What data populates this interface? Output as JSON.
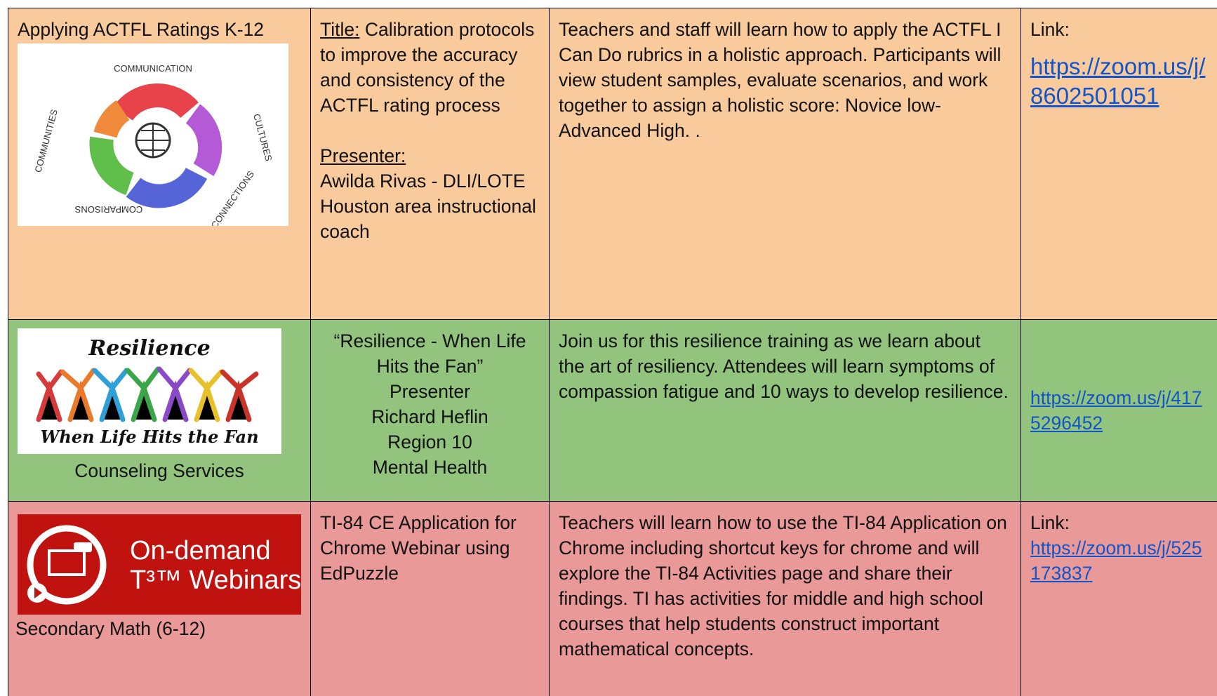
{
  "table": {
    "rows": [
      {
        "topic": "Applying ACTFL Ratings K-12",
        "image_words": [
          "COMMUNICATION",
          "CULTURES",
          "CONNECTIONS",
          "COMPARISONS",
          "COMMUNITIES"
        ],
        "title_label": "Title:",
        "title": "Calibration protocols to improve the accuracy and consistency of the ACTFL rating process",
        "presenter_label": "Presenter:",
        "presenter": "Awilda Rivas - DLI/LOTE Houston area instructional coach",
        "description": "Teachers and staff will learn how to apply the ACTFL I Can Do rubrics in a holistic approach. Participants will view student samples, evaluate scenarios, and work together to assign a holistic score: Novice low- Advanced High. .",
        "link_label": "Link:",
        "link": "https://zoom.us/j/8602501051"
      },
      {
        "image_title": "Resilience",
        "image_subtitle": "When Life Hits the Fan",
        "topic": "Counseling Services",
        "title_lines": [
          "“Resilience - When Life Hits the Fan”",
          "Presenter",
          "Richard Heflin",
          "Region 10",
          "Mental Health"
        ],
        "description": "Join us for this resilience training as we learn about the art of resiliency. Attendees will learn symptoms of compassion fatigue and 10 ways to develop resilience.",
        "link": "https://zoom.us/j/4175296452"
      },
      {
        "image_line1": "On-demand",
        "image_line2": "T³™ Webinars",
        "topic": "Secondary Math (6-12)",
        "title": "TI-84 CE Application for Chrome Webinar using EdPuzzle",
        "description": "Teachers will learn how to use the TI-84 Application on Chrome including shortcut keys for chrome and will explore the TI-84 Activities page and share their findings. TI has activities for middle and high school courses that help students construct important mathematical concepts.",
        "link_label": "Link:",
        "link": "https://zoom.us/j/525173837"
      }
    ]
  }
}
